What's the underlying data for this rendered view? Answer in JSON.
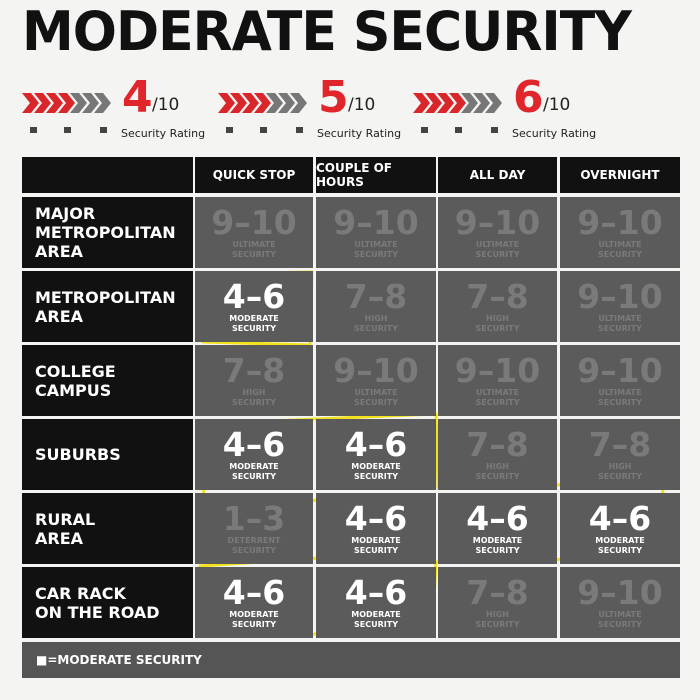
{
  "title": "MODERATE SECURITY",
  "ratings": [
    {
      "number": "4",
      "scale": "/10",
      "label": "Security Rating"
    },
    {
      "number": "5",
      "scale": "/10",
      "label": "Security Rating"
    },
    {
      "number": "6",
      "scale": "/10",
      "label": "Security Rating"
    }
  ],
  "table": {
    "columns": [
      "QUICK STOP",
      "COUPLE OF HOURS",
      "ALL DAY",
      "OVERNIGHT"
    ],
    "rows": [
      {
        "label": "MAJOR\nMETROPOLITAN\nAREA",
        "cells": [
          {
            "range": "9–10",
            "level": "ULTIMATE\nSECURITY",
            "color": "#7a7a7a"
          },
          {
            "range": "9–10",
            "level": "ULTIMATE\nSECURITY",
            "color": "#7a7a7a"
          },
          {
            "range": "9–10",
            "level": "ULTIMATE\nSECURITY",
            "color": "#7a7a7a"
          },
          {
            "range": "9–10",
            "level": "ULTIMATE\nSECURITY",
            "color": "#7a7a7a"
          }
        ]
      },
      {
        "label": "METROPOLITAN\nAREA",
        "cells": [
          {
            "range": "4–6",
            "level": "MODERATE\nSECURITY",
            "color": "#ffffff"
          },
          {
            "range": "7–8",
            "level": "HIGH\nSECURITY",
            "color": "#7a7a7a"
          },
          {
            "range": "7–8",
            "level": "HIGH\nSECURITY",
            "color": "#7a7a7a"
          },
          {
            "range": "9–10",
            "level": "ULTIMATE\nSECURITY",
            "color": "#7a7a7a"
          }
        ]
      },
      {
        "label": "COLLEGE\nCAMPUS",
        "cells": [
          {
            "range": "7–8",
            "level": "HIGH\nSECURITY",
            "color": "#7a7a7a"
          },
          {
            "range": "9–10",
            "level": "ULTIMATE\nSECURITY",
            "color": "#7a7a7a"
          },
          {
            "range": "9–10",
            "level": "ULTIMATE\nSECURITY",
            "color": "#7a7a7a"
          },
          {
            "range": "9–10",
            "level": "ULTIMATE\nSECURITY",
            "color": "#7a7a7a"
          }
        ]
      },
      {
        "label": "SUBURBS",
        "cells": [
          {
            "range": "4–6",
            "level": "MODERATE\nSECURITY",
            "color": "#ffffff"
          },
          {
            "range": "4–6",
            "level": "MODERATE\nSECURITY",
            "color": "#ffffff"
          },
          {
            "range": "7–8",
            "level": "HIGH\nSECURITY",
            "color": "#7a7a7a"
          },
          {
            "range": "7–8",
            "level": "HIGH\nSECURITY",
            "color": "#7a7a7a"
          }
        ]
      },
      {
        "label": "RURAL\nAREA",
        "cells": [
          {
            "range": "1–3",
            "level": "DETERRENT\nSECURITY",
            "color": "#7a7a7a"
          },
          {
            "range": "4–6",
            "level": "MODERATE\nSECURITY",
            "color": "#ffffff"
          },
          {
            "range": "4–6",
            "level": "MODERATE\nSECURITY",
            "color": "#ffffff"
          },
          {
            "range": "4–6",
            "level": "MODERATE\nSECURITY",
            "color": "#ffffff"
          }
        ]
      },
      {
        "label": "CAR RACK\nON THE ROAD",
        "cells": [
          {
            "range": "4–6",
            "level": "MODERATE\nSECURITY",
            "color": "#ffffff"
          },
          {
            "range": "4–6",
            "level": "MODERATE\nSECURITY",
            "color": "#ffffff"
          },
          {
            "range": "7–8",
            "level": "HIGH\nSECURITY",
            "color": "#7a7a7a"
          },
          {
            "range": "9–10",
            "level": "ULTIMATE\nSECURITY",
            "color": "#7a7a7a"
          }
        ]
      }
    ]
  },
  "footer": "■=MODERATE SECURITY"
}
